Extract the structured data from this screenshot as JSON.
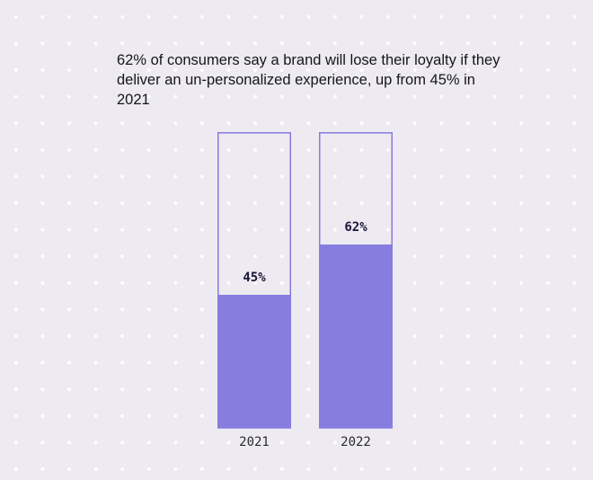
{
  "chart_data": {
    "type": "bar",
    "title": "62% of consumers say a brand will lose their loyalty if they deliver an un-personalized experience, up from 45% in 2021",
    "categories": [
      "2021",
      "2022"
    ],
    "values": [
      45,
      62
    ],
    "data_labels": [
      "45%",
      "62%"
    ],
    "ylim": [
      0,
      100
    ],
    "xlabel": "",
    "ylabel": "",
    "grid": false,
    "colors": {
      "fill": "#867ddf",
      "outline": "#8979dd",
      "label": "#1c1538"
    }
  }
}
